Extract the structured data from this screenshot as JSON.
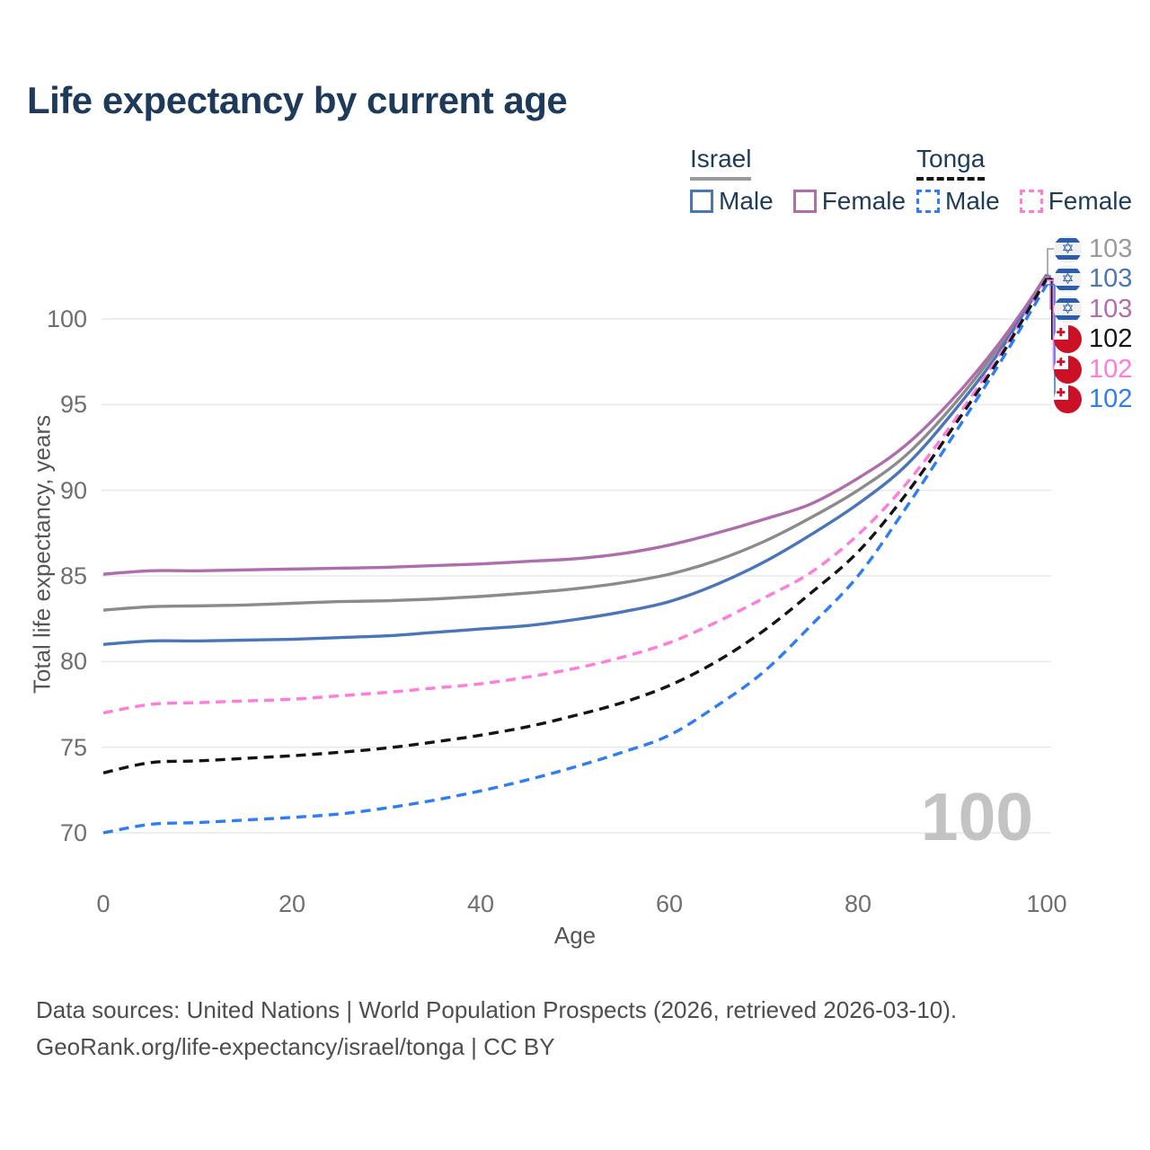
{
  "title": "Life expectancy by current age",
  "legend": {
    "groups": [
      {
        "label": "Israel",
        "line_style": "solid",
        "line_color": "#9a9a9a",
        "items": [
          {
            "label": "Male",
            "color": "#4a76b8"
          },
          {
            "label": "Female",
            "color": "#b06dad"
          }
        ]
      },
      {
        "label": "Tonga",
        "line_style": "dashed",
        "line_color": "#141414",
        "items": [
          {
            "label": "Male",
            "color": "#2f7df2"
          },
          {
            "label": "Female",
            "color": "#ff7bdc"
          }
        ]
      }
    ]
  },
  "chart_data": {
    "type": "line",
    "title": "Life expectancy by current age",
    "xlabel": "Age",
    "ylabel": "Total life expectancy, years",
    "x_ticks": [
      0,
      20,
      40,
      60,
      80,
      100
    ],
    "y_ticks": [
      70,
      75,
      80,
      85,
      90,
      95,
      100
    ],
    "xlim": [
      0,
      100
    ],
    "ylim": [
      68.5,
      104
    ],
    "grid": "horizontal",
    "legend_position": "top-right",
    "age_indicator": "100",
    "x": [
      0,
      5,
      10,
      15,
      20,
      25,
      30,
      35,
      40,
      45,
      50,
      55,
      60,
      65,
      70,
      75,
      80,
      85,
      90,
      95,
      100
    ],
    "series": [
      {
        "name": "Israel Both sexes",
        "country": "Israel",
        "sex": "Both",
        "style": "solid",
        "color": "#8b8b8b",
        "values": [
          83.0,
          83.2,
          83.25,
          83.3,
          83.4,
          83.5,
          83.55,
          83.65,
          83.8,
          84.0,
          84.25,
          84.6,
          85.1,
          85.9,
          87.0,
          88.4,
          90.0,
          92.0,
          94.9,
          98.4,
          102.6
        ]
      },
      {
        "name": "Israel Male",
        "country": "Israel",
        "sex": "Male",
        "style": "solid",
        "color": "#4a76b8",
        "values": [
          81.0,
          81.2,
          81.2,
          81.25,
          81.3,
          81.4,
          81.5,
          81.7,
          81.9,
          82.1,
          82.45,
          82.9,
          83.5,
          84.5,
          85.8,
          87.4,
          89.2,
          91.4,
          94.5,
          98.1,
          102.55
        ]
      },
      {
        "name": "Israel Female",
        "country": "Israel",
        "sex": "Female",
        "style": "solid",
        "color": "#b06dad",
        "values": [
          85.1,
          85.3,
          85.3,
          85.35,
          85.4,
          85.45,
          85.5,
          85.6,
          85.7,
          85.85,
          86.0,
          86.3,
          86.8,
          87.5,
          88.3,
          89.2,
          90.7,
          92.6,
          95.3,
          98.6,
          102.5
        ]
      },
      {
        "name": "Tonga Female",
        "country": "Tonga",
        "sex": "Female",
        "style": "dashed",
        "color": "#ff7bdc",
        "values": [
          77.0,
          77.5,
          77.6,
          77.7,
          77.8,
          78.0,
          78.2,
          78.45,
          78.7,
          79.1,
          79.6,
          80.25,
          81.1,
          82.3,
          83.7,
          85.2,
          87.4,
          90.3,
          93.9,
          97.9,
          102.25
        ]
      },
      {
        "name": "Tonga Both sexes",
        "country": "Tonga",
        "sex": "Both",
        "style": "dashed",
        "color": "#141414",
        "values": [
          73.5,
          74.1,
          74.2,
          74.35,
          74.5,
          74.7,
          74.95,
          75.3,
          75.7,
          76.2,
          76.85,
          77.6,
          78.6,
          80.0,
          81.8,
          84.0,
          86.4,
          89.7,
          93.6,
          97.7,
          102.35
        ]
      },
      {
        "name": "Tonga Male",
        "country": "Tonga",
        "sex": "Male",
        "style": "dashed",
        "color": "#2f7df2",
        "values": [
          70.0,
          70.5,
          70.6,
          70.75,
          70.9,
          71.1,
          71.45,
          71.9,
          72.45,
          73.1,
          73.85,
          74.7,
          75.7,
          77.4,
          79.4,
          82.1,
          85.0,
          88.9,
          93.1,
          97.4,
          102.0
        ]
      }
    ]
  },
  "end_labels": [
    {
      "value": "103",
      "flag": "israel",
      "series": "Israel Both sexes",
      "color": "#9a9a9a"
    },
    {
      "value": "103",
      "flag": "israel",
      "series": "Israel Male",
      "color": "#4a76b8"
    },
    {
      "value": "103",
      "flag": "israel",
      "series": "Israel Female",
      "color": "#b06dad"
    },
    {
      "value": "102",
      "flag": "tonga",
      "series": "Tonga Both sexes",
      "color": "#141414"
    },
    {
      "value": "102",
      "flag": "tonga",
      "series": "Tonga Female",
      "color": "#ff7bdc"
    },
    {
      "value": "102",
      "flag": "tonga",
      "series": "Tonga Male",
      "color": "#2f7df2"
    }
  ],
  "footer": {
    "line1": "Data sources: United Nations | World Population Prospects (2026, retrieved 2026-03-10).",
    "line2": "GeoRank.org/life-expectancy/israel/tonga | CC BY"
  }
}
